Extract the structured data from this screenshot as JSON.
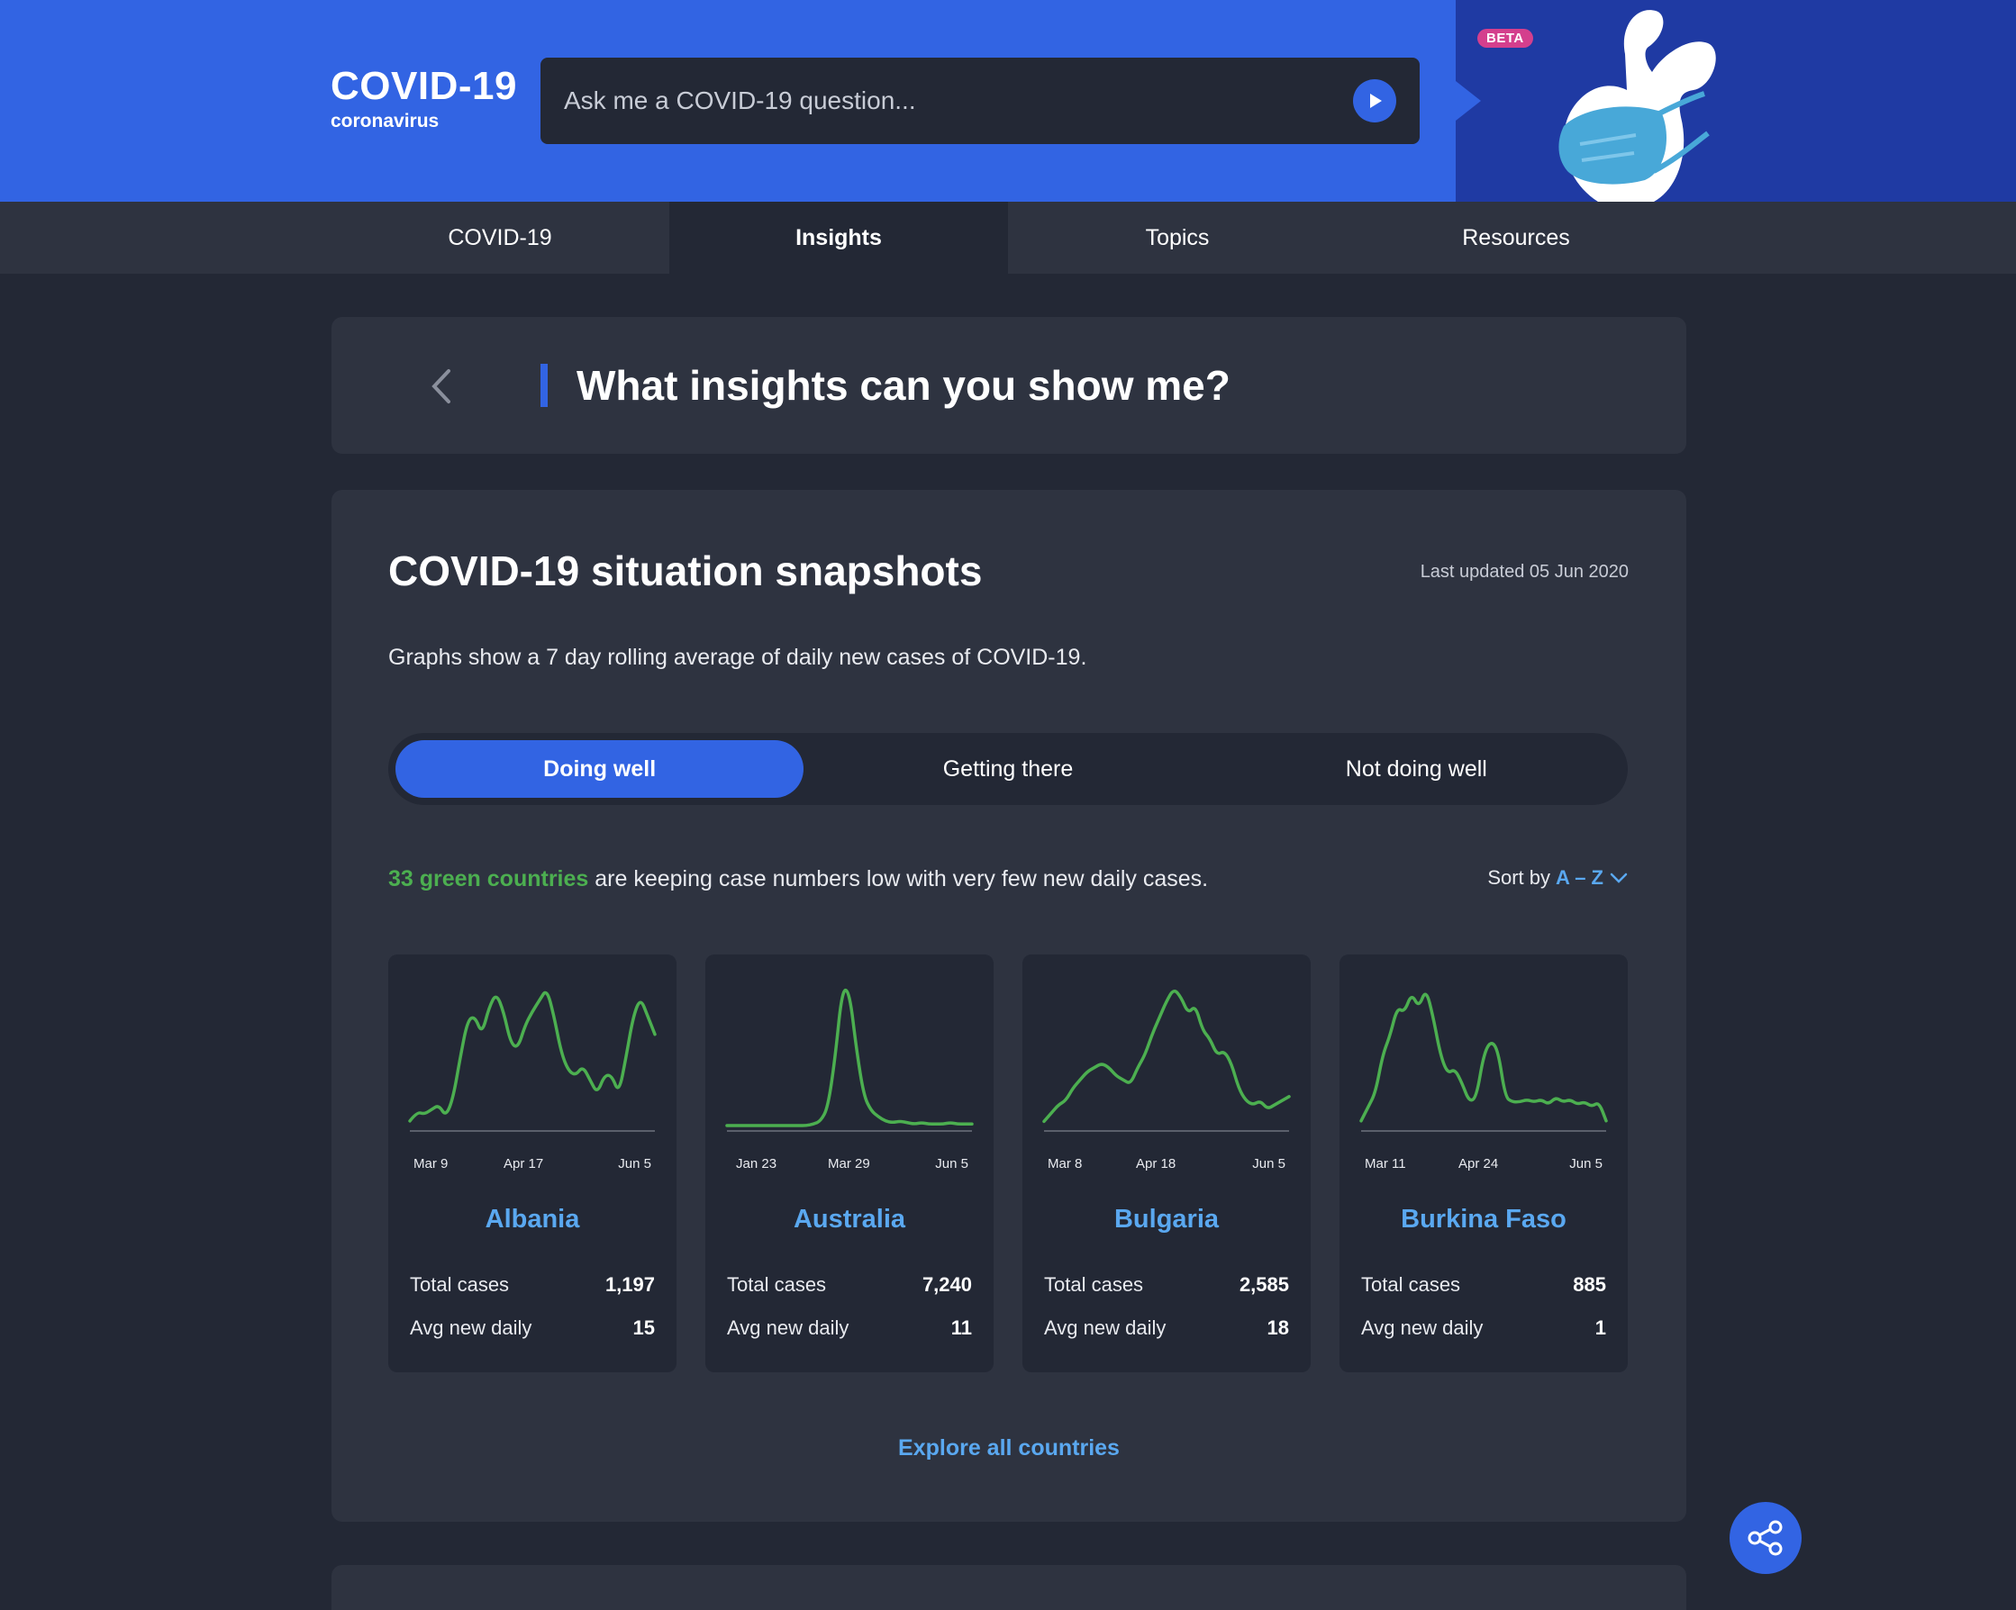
{
  "header": {
    "brand_title": "COVID-19",
    "brand_subtitle": "coronavirus",
    "ask_placeholder": "Ask me a COVID-19 question...",
    "beta_label": "BETA"
  },
  "nav": {
    "tabs": [
      {
        "label": "COVID-19",
        "active": false
      },
      {
        "label": "Insights",
        "active": true
      },
      {
        "label": "Topics",
        "active": false
      },
      {
        "label": "Resources",
        "active": false
      }
    ]
  },
  "question": {
    "title": "What insights can you show me?"
  },
  "snapshot": {
    "title": "COVID-19 situation snapshots",
    "last_updated": "Last updated 05 Jun 2020",
    "description": "Graphs show a 7 day rolling average of daily new cases of COVID-19.",
    "segments": [
      {
        "label": "Doing well",
        "active": true
      },
      {
        "label": "Getting there",
        "active": false
      },
      {
        "label": "Not doing well",
        "active": false
      }
    ],
    "summary_highlight": "33 green countries",
    "summary_rest": " are keeping case numbers low with very few new daily cases.",
    "sort_label": "Sort by",
    "sort_value": "A – Z",
    "explore_label": "Explore all countries"
  },
  "colors": {
    "line": "#4caf50",
    "accent": "#3264e3",
    "link": "#5aa8f0"
  },
  "chart_data": [
    {
      "type": "line",
      "country": "Albania",
      "ticks": [
        "Mar 9",
        "Apr 17",
        "Jun 5"
      ],
      "total_label": "Total cases",
      "total": "1,197",
      "avg_label": "Avg new daily",
      "avg": "15",
      "values": [
        2,
        6,
        5,
        7,
        9,
        4,
        12,
        30,
        46,
        48,
        40,
        52,
        58,
        50,
        36,
        34,
        44,
        50,
        55,
        60,
        48,
        32,
        24,
        22,
        26,
        20,
        14,
        22,
        22,
        14,
        30,
        48,
        56,
        48,
        40
      ]
    },
    {
      "type": "line",
      "country": "Australia",
      "ticks": [
        "Jan 23",
        "Mar 29",
        "Jun 5"
      ],
      "total_label": "Total cases",
      "total": "7,240",
      "avg_label": "Avg new daily",
      "avg": "11",
      "values": [
        0,
        0,
        0,
        0,
        0,
        0,
        0,
        0,
        0,
        0,
        0,
        0,
        1,
        3,
        12,
        45,
        92,
        90,
        50,
        20,
        10,
        6,
        3,
        2,
        3,
        2,
        1,
        2,
        1,
        1,
        1,
        2,
        1,
        1,
        1
      ]
    },
    {
      "type": "line",
      "country": "Bulgaria",
      "ticks": [
        "Mar 8",
        "Apr 18",
        "Jun 5"
      ],
      "total_label": "Total cases",
      "total": "2,585",
      "avg_label": "Avg new daily",
      "avg": "18",
      "values": [
        2,
        6,
        10,
        12,
        18,
        22,
        26,
        28,
        30,
        28,
        24,
        22,
        20,
        28,
        34,
        44,
        52,
        60,
        66,
        62,
        54,
        58,
        46,
        42,
        34,
        36,
        30,
        18,
        12,
        10,
        12,
        8,
        10,
        12,
        14
      ]
    },
    {
      "type": "line",
      "country": "Burkina Faso",
      "ticks": [
        "Mar 11",
        "Apr 24",
        "Jun 5"
      ],
      "total_label": "Total cases",
      "total": "885",
      "avg_label": "Avg new daily",
      "avg": "1",
      "values": [
        2,
        8,
        14,
        30,
        38,
        50,
        48,
        56,
        50,
        58,
        46,
        30,
        22,
        24,
        18,
        10,
        12,
        30,
        36,
        32,
        12,
        10,
        10,
        11,
        10,
        11,
        9,
        12,
        10,
        11,
        9,
        10,
        8,
        10,
        2
      ]
    }
  ]
}
